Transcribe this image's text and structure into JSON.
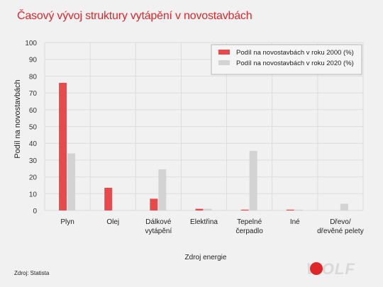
{
  "title": "Časový vývoj struktury vytápění v novostavbách",
  "source": "Zdroj: Statista",
  "logo_text": "WOLF",
  "colors": {
    "series_2000": "#e84a4c",
    "series_2020": "#d3d3d3",
    "title": "#e0262b"
  },
  "chart_data": {
    "type": "bar",
    "categories": [
      "Plyn",
      "Olej",
      "Dálkové vytápění",
      "Elektřina",
      "Tepelné čerpadlo",
      "Iné",
      "Dřevo/ dřevěné pelety"
    ],
    "category_lines": [
      [
        "Plyn"
      ],
      [
        "Olej"
      ],
      [
        "Dálkové",
        "vytápění"
      ],
      [
        "Elektřina"
      ],
      [
        "Tepelné",
        "čerpadlo"
      ],
      [
        "Iné"
      ],
      [
        "Dřevo/",
        "dřevěné pelety"
      ]
    ],
    "series": [
      {
        "name": "Podíl na novostavbách v roku 2000 (%)",
        "values": [
          76,
          13.5,
          7,
          1,
          0.5,
          0.5,
          0
        ]
      },
      {
        "name": "Podíl na novostavbách v roku 2020 (%)",
        "values": [
          34,
          0,
          24.5,
          1,
          35.5,
          0.5,
          4
        ]
      }
    ],
    "xlabel": "Zdroj energie",
    "ylabel": "Podíl na novostavbách",
    "ylim": [
      0,
      100
    ],
    "yticks": [
      0,
      10,
      20,
      30,
      40,
      50,
      60,
      70,
      80,
      90,
      100
    ],
    "grid": true,
    "legend": "top-right"
  }
}
